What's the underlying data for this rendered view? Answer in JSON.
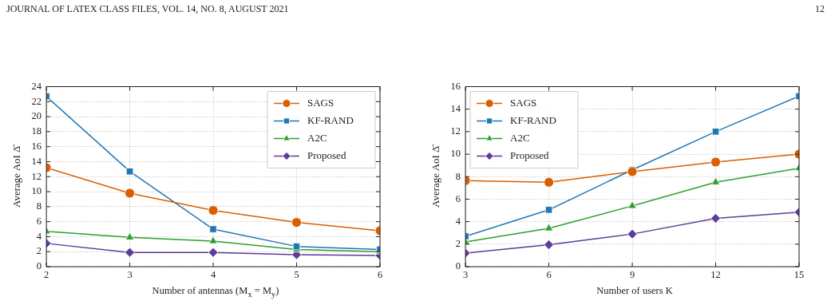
{
  "chart_data": [
    {
      "type": "line",
      "xlabel": "Number of antennas (M$_{x}$ = M$_{y}$)",
      "ylabel": "Average AoI Δ̄",
      "x": [
        2,
        3,
        4,
        5,
        6
      ],
      "xlim": [
        2,
        6
      ],
      "xticks": [
        2,
        3,
        4,
        5,
        6
      ],
      "ylim": [
        0,
        24
      ],
      "yticks": [
        0,
        2,
        4,
        6,
        8,
        10,
        12,
        14,
        16,
        18,
        20,
        22,
        24
      ],
      "grid": true,
      "legend": "top right",
      "annotations": [
        "JOURNAL OF LATEX CLASS FILES, VOL. 14, NO. 8, AUGUST 2021",
        "12"
      ],
      "series": [
        {
          "name": "SAGS",
          "color": "#d95f02",
          "marker": "circle",
          "values": [
            13.2,
            9.8,
            7.5,
            5.9,
            4.8
          ]
        },
        {
          "name": "KF-RAND",
          "color": "#1f77b4",
          "marker": "square",
          "values": [
            22.7,
            12.7,
            5.0,
            2.7,
            2.3
          ]
        },
        {
          "name": "A2C",
          "color": "#2ca02c",
          "marker": "triangle",
          "values": [
            4.7,
            3.9,
            3.4,
            2.3,
            2.0
          ]
        },
        {
          "name": "Proposed",
          "color": "#5e3c99",
          "marker": "diamond",
          "values": [
            3.1,
            1.9,
            1.9,
            1.6,
            1.5
          ]
        }
      ]
    },
    {
      "type": "line",
      "xlabel": "Number of users K",
      "ylabel": "Average AoI Δ̄",
      "x": [
        3,
        6,
        9,
        12,
        15
      ],
      "xlim": [
        3,
        15
      ],
      "xticks": [
        3,
        6,
        9,
        12,
        15
      ],
      "ylim": [
        0,
        16
      ],
      "yticks": [
        0,
        2,
        4,
        6,
        8,
        10,
        12,
        14,
        16
      ],
      "grid": true,
      "legend": "top left",
      "series": [
        {
          "name": "SAGS",
          "color": "#d95f02",
          "marker": "circle",
          "values": [
            7.65,
            7.5,
            8.45,
            9.3,
            10.0
          ]
        },
        {
          "name": "KF-RAND",
          "color": "#1f77b4",
          "marker": "square",
          "values": [
            2.7,
            5.05,
            8.6,
            12.0,
            15.15
          ]
        },
        {
          "name": "A2C",
          "color": "#2ca02c",
          "marker": "triangle",
          "values": [
            2.2,
            3.4,
            5.4,
            7.5,
            8.75
          ]
        },
        {
          "name": "Proposed",
          "color": "#5e3c99",
          "marker": "diamond",
          "values": [
            1.2,
            1.95,
            2.9,
            4.3,
            4.85
          ]
        }
      ]
    }
  ]
}
